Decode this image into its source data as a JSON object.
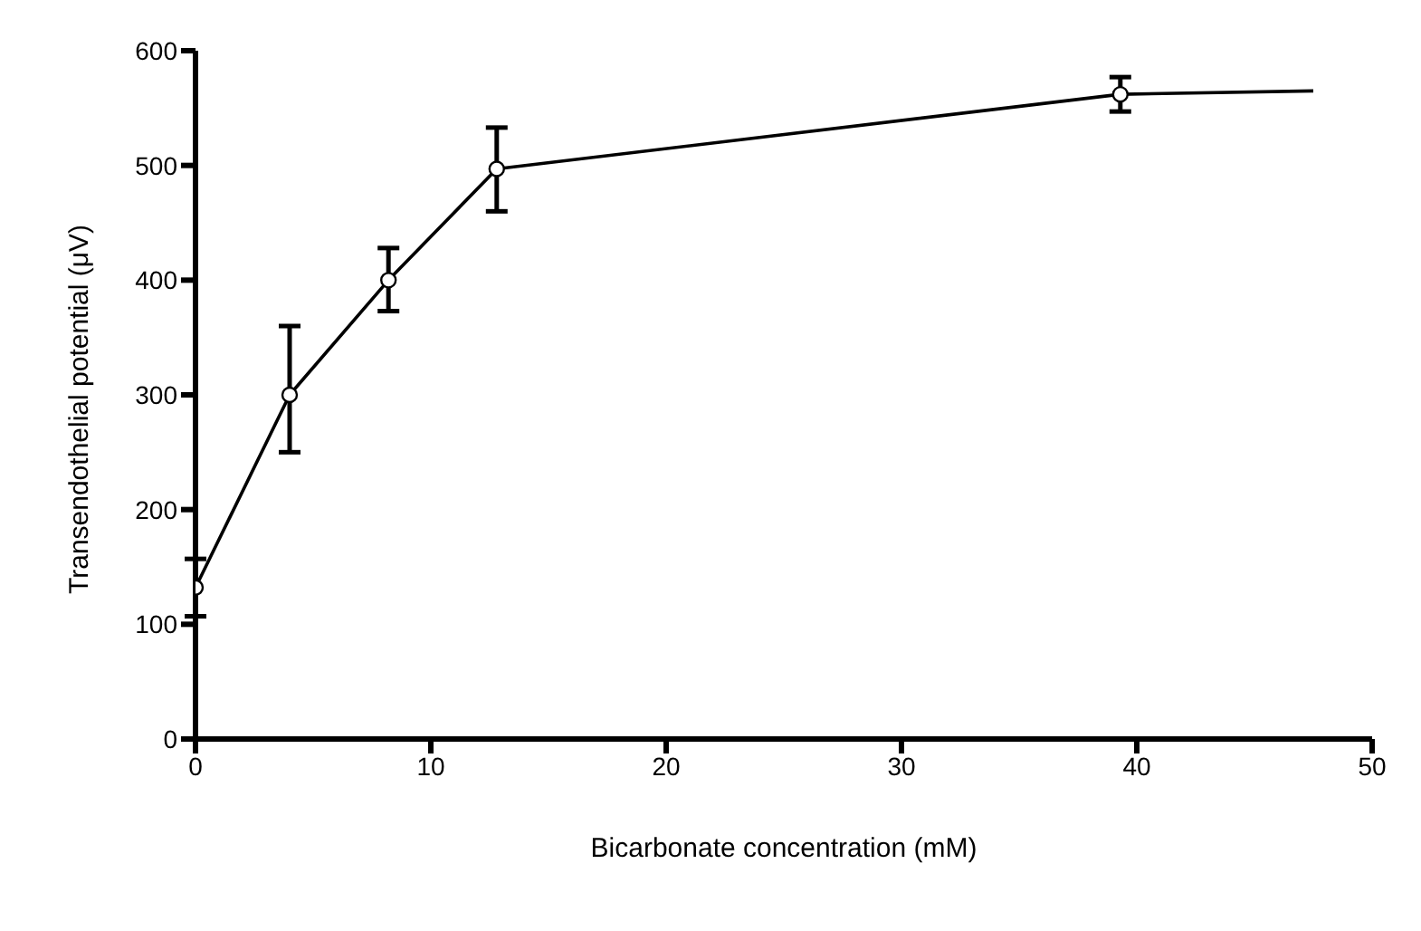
{
  "chart_data": {
    "type": "line",
    "xlabel": "Bicarbonate concentration (mM)",
    "ylabel": "Transendothelial potential (μV)",
    "xlim": [
      0,
      50
    ],
    "xticks": [
      0,
      10,
      20,
      30,
      40,
      50
    ],
    "ylim": [
      0,
      600
    ],
    "yticks": [
      0,
      100,
      200,
      300,
      400,
      500,
      600
    ],
    "grid": false,
    "series": [
      {
        "color": "#000000",
        "marker": "circle",
        "x": [
          0,
          4,
          8.2,
          12.8,
          39.3
        ],
        "values": [
          132,
          300,
          400,
          497,
          562
        ],
        "errors": [
          [
            107,
            157
          ],
          [
            250,
            360
          ],
          [
            373,
            428
          ],
          [
            460,
            533
          ],
          [
            547,
            577
          ]
        ]
      },
      {
        "color": "#000000",
        "marker": "none",
        "x": [
          39.3,
          47.5
        ],
        "values": [
          562,
          565
        ]
      }
    ]
  }
}
